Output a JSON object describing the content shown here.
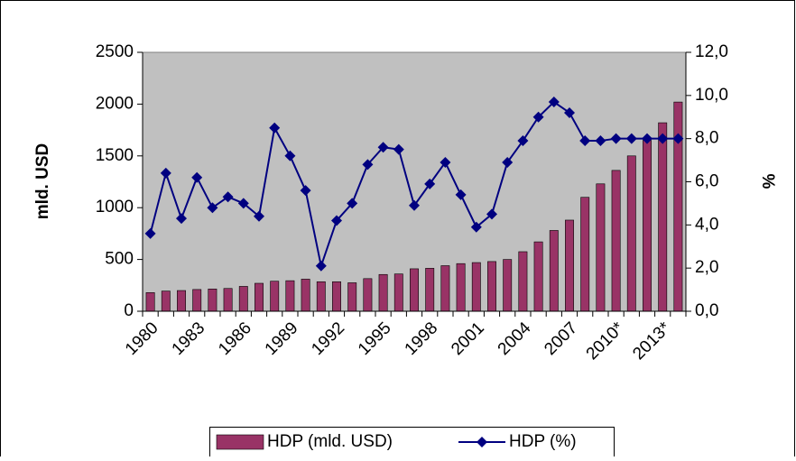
{
  "chart_data": {
    "type": "bar+line",
    "categories": [
      "1980",
      null,
      null,
      "1983",
      null,
      null,
      "1986",
      null,
      null,
      "1989",
      null,
      null,
      "1992",
      null,
      null,
      "1995",
      null,
      null,
      "1998",
      null,
      null,
      "2001",
      null,
      null,
      "2004",
      null,
      null,
      "2007",
      null,
      null,
      "2010*",
      null,
      null,
      "2013*",
      null
    ],
    "series": [
      {
        "name": "HDP (mld. USD)",
        "type": "bar",
        "color": "#993366",
        "values": [
          180,
          195,
          200,
          210,
          215,
          220,
          240,
          270,
          290,
          295,
          310,
          285,
          285,
          275,
          315,
          355,
          360,
          410,
          415,
          440,
          460,
          470,
          480,
          500,
          575,
          670,
          780,
          880,
          1100,
          1230,
          1360,
          1500,
          1650,
          1820,
          2020
        ]
      },
      {
        "name": "HDP (%)",
        "type": "line",
        "axis": "y2",
        "color": "#000080",
        "values": [
          3.6,
          6.4,
          4.3,
          6.2,
          4.8,
          5.3,
          5.0,
          4.4,
          8.5,
          7.2,
          5.6,
          2.1,
          4.2,
          5.0,
          6.8,
          7.6,
          7.5,
          4.9,
          5.9,
          6.9,
          5.4,
          3.9,
          4.5,
          6.9,
          7.9,
          9.0,
          9.7,
          9.2,
          7.9,
          7.9,
          8.0,
          8.0,
          8.0,
          8.0,
          8.0
        ]
      }
    ],
    "ylabel": "mld. USD",
    "y2label": "%",
    "ylim": [
      0,
      2500
    ],
    "yticks": [
      0,
      500,
      1000,
      1500,
      2000,
      2500
    ],
    "y2lim": [
      0,
      12
    ],
    "y2ticks": [
      {
        "value": 0,
        "label": "0,0"
      },
      {
        "value": 2,
        "label": "2,0"
      },
      {
        "value": 4,
        "label": "4,0"
      },
      {
        "value": 6,
        "label": "6,0"
      },
      {
        "value": 8,
        "label": "8,0"
      },
      {
        "value": 10,
        "label": "10,0"
      },
      {
        "value": 12,
        "label": "12,0"
      }
    ],
    "legend": "bottom",
    "plot_background": "#c0c0c0"
  }
}
